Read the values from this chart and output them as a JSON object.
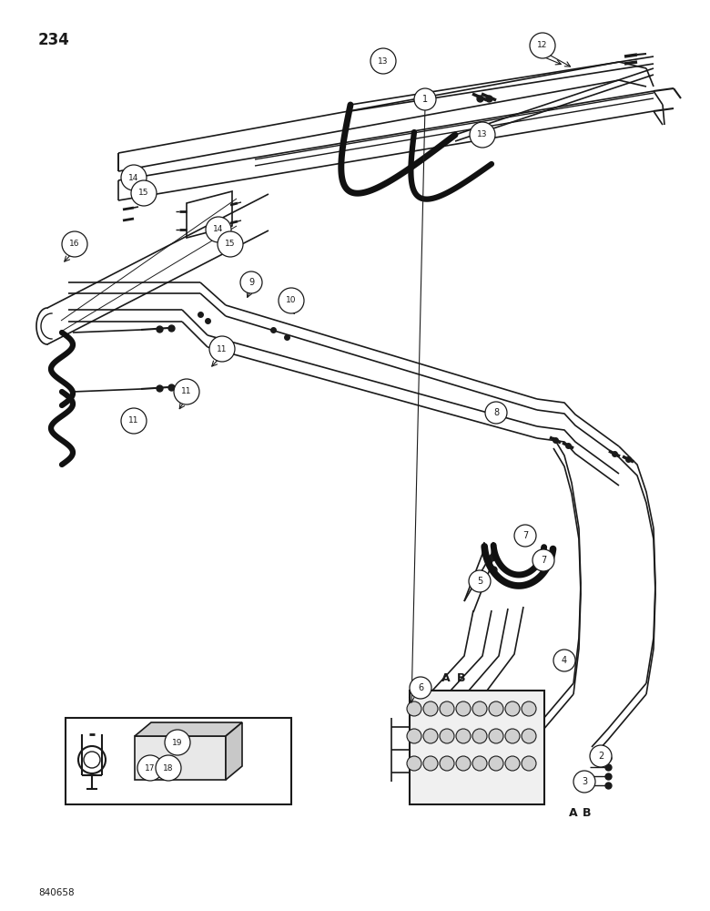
{
  "page_number": "234",
  "doc_code": "840658",
  "bg_color": "#ffffff",
  "lc": "#1a1a1a",
  "figsize": [
    7.8,
    10.0
  ],
  "dpi": 100,
  "labels": [
    [
      467,
      109,
      "1"
    ],
    [
      660,
      830,
      "2"
    ],
    [
      642,
      858,
      "3"
    ],
    [
      620,
      725,
      "4"
    ],
    [
      527,
      638,
      "5"
    ],
    [
      462,
      755,
      "6"
    ],
    [
      577,
      588,
      "7"
    ],
    [
      597,
      615,
      "7"
    ],
    [
      545,
      453,
      "8"
    ],
    [
      276,
      310,
      "9"
    ],
    [
      320,
      330,
      "10"
    ],
    [
      244,
      383,
      "11"
    ],
    [
      205,
      430,
      "11"
    ],
    [
      147,
      462,
      "11"
    ],
    [
      596,
      50,
      "12"
    ],
    [
      421,
      67,
      "13"
    ],
    [
      530,
      148,
      "13"
    ],
    [
      147,
      195,
      "14"
    ],
    [
      240,
      252,
      "14"
    ],
    [
      158,
      212,
      "15"
    ],
    [
      253,
      268,
      "15"
    ],
    [
      82,
      268,
      "16"
    ],
    [
      165,
      843,
      "17"
    ],
    [
      185,
      843,
      "18"
    ],
    [
      195,
      815,
      "19"
    ]
  ],
  "ab_labels": [
    [
      490,
      745,
      "A"
    ],
    [
      507,
      745,
      "B"
    ],
    [
      630,
      892,
      "A"
    ],
    [
      645,
      892,
      "B"
    ]
  ]
}
